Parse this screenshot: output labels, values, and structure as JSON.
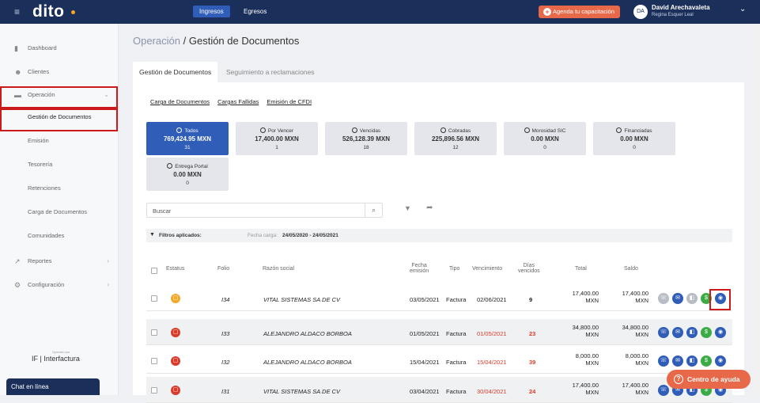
{
  "topbar": {
    "logo": "dito",
    "menu_icon": "hamburger-icon",
    "tab_ingresos": "Ingresos",
    "tab_egresos": "Egresos",
    "agenda_label": "Agenda tu capacitación",
    "avatar_initials": "DA",
    "user_name": "David Arechavaleta",
    "user_org": "Regina Esquer Leal"
  },
  "sidebar": {
    "items": [
      {
        "label": "Dashboard",
        "icon": "bar-chart-icon"
      },
      {
        "label": "Clientes",
        "icon": "users-icon"
      },
      {
        "label": "Operación",
        "icon": "folder-icon"
      }
    ],
    "submenu": [
      "Gestión de Documentos",
      "Emisión",
      "Tesorería",
      "Retenciones",
      "Carga de Documentos",
      "Comunidades"
    ],
    "reportes": "Reportes",
    "configuracion": "Configuración",
    "powered": "Operado por",
    "brand": "IF | Interfactura",
    "chat": "Chat en línea"
  },
  "breadcrumb": {
    "parent": "Operación",
    "separator": "/",
    "current": "Gestión de Documentos"
  },
  "tabs": [
    "Gestión de Documentos",
    "Seguimiento a reclamaciones"
  ],
  "links": [
    "Carga de Documentos",
    "Cargas Fallidas",
    "Emisión de CFDI"
  ],
  "stats": [
    {
      "label": "Todos",
      "amount": "769,424.95 MXN",
      "count": "31"
    },
    {
      "label": "Por Vencer",
      "amount": "17,400.00 MXN",
      "count": "1"
    },
    {
      "label": "Vencidas",
      "amount": "526,128.39 MXN",
      "count": "18"
    },
    {
      "label": "Cobradas",
      "amount": "225,896.56 MXN",
      "count": "12"
    },
    {
      "label": "Morosidad SIC",
      "amount": "0.00 MXN",
      "count": "0"
    },
    {
      "label": "Financiadas",
      "amount": "0.00 MXN",
      "count": "0"
    },
    {
      "label": "Entrega Portal",
      "amount": "0.00 MXN",
      "count": "0"
    }
  ],
  "search": {
    "placeholder": "Buscar"
  },
  "filters": {
    "label": "Filtros aplicados:",
    "date_label": "Fecha carga:",
    "date_range": "24/05/2020 - 24/05/2021"
  },
  "table": {
    "headers": {
      "status": "Estatus",
      "folio": "Folio",
      "razon": "Razón social",
      "fecha1": "Fecha",
      "fecha2": "emisión",
      "tipo": "Tipo",
      "venc": "Vencimiento",
      "dias1": "Días",
      "dias2": "vencidos",
      "total": "Total",
      "saldo": "Saldo"
    },
    "rows": [
      {
        "folio": "I34",
        "razon": "VITAL SISTEMAS SA DE CV",
        "fecha": "03/05/2021",
        "tipo": "Factura",
        "venc": "02/06/2021",
        "dias": "9",
        "total1": "17,400.00",
        "total2": "MXN",
        "saldo1": "17,400.00",
        "saldo2": "MXN",
        "status_color": "#f0a92b",
        "overdue": false
      },
      {
        "folio": "I33",
        "razon": "ALEJANDRO ALDACO BORBOA",
        "fecha": "01/05/2021",
        "tipo": "Factura",
        "venc": "01/05/2021",
        "dias": "23",
        "total1": "34,800.00",
        "total2": "MXN",
        "saldo1": "34,800.00",
        "saldo2": "MXN",
        "status_color": "#d93b2b",
        "overdue": true
      },
      {
        "folio": "I32",
        "razon": "ALEJANDRO ALDACO BORBOA",
        "fecha": "15/04/2021",
        "tipo": "Factura",
        "venc": "15/04/2021",
        "dias": "39",
        "total1": "8,000.00",
        "total2": "MXN",
        "saldo1": "8,000.00",
        "saldo2": "MXN",
        "status_color": "#d93b2b",
        "overdue": true
      },
      {
        "folio": "I31",
        "razon": "VITAL SISTEMAS SA DE CV",
        "fecha": "03/04/2021",
        "tipo": "Factura",
        "venc": "30/04/2021",
        "dias": "24",
        "total1": "17,400.00",
        "total2": "MXN",
        "saldo1": "17,400.00",
        "saldo2": "MXN",
        "status_color": "#d93b2b",
        "overdue": true
      }
    ]
  },
  "colors": {
    "navy": "#1b2f5b",
    "blue": "#2f5db8",
    "orange": "#e8694a",
    "red": "#d93b2b",
    "green": "#3bab45",
    "grey": "#b8bcc4",
    "highlight": "#cc1a1a"
  },
  "help_label": "Centro de ayuda"
}
